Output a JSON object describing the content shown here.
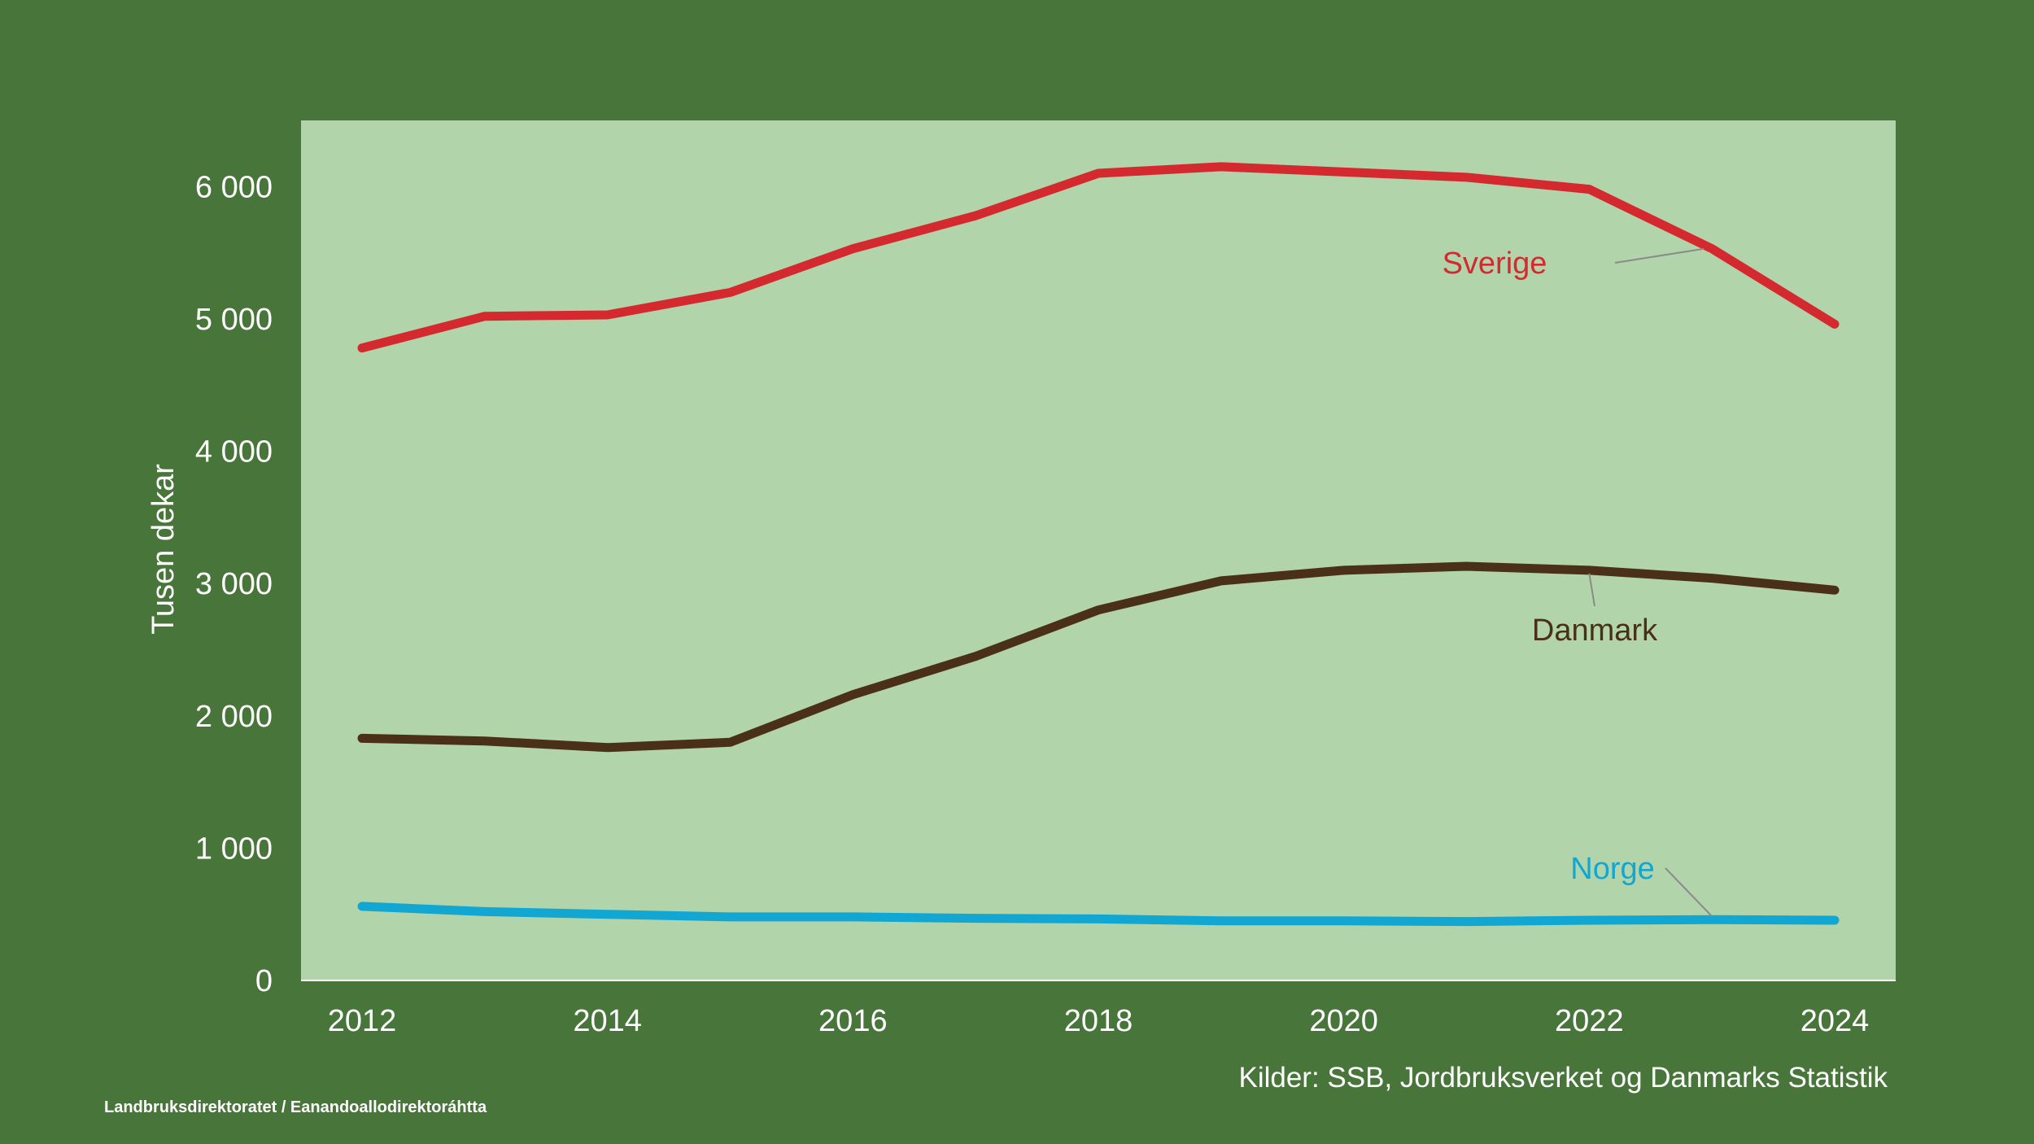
{
  "chart_data": {
    "type": "line",
    "ylabel": "Tusen dekar",
    "xlabel": "",
    "ylim": [
      0,
      6500
    ],
    "xlim": [
      2012,
      2024
    ],
    "x_ticks": [
      "2012",
      "2014",
      "2016",
      "2018",
      "2020",
      "2022",
      "2024"
    ],
    "y_ticks": [
      {
        "value": 0,
        "label": "0"
      },
      {
        "value": 1000,
        "label": "1 000"
      },
      {
        "value": 2000,
        "label": "2 000"
      },
      {
        "value": 3000,
        "label": "3 000"
      },
      {
        "value": 4000,
        "label": "4 000"
      },
      {
        "value": 5000,
        "label": "5 000"
      },
      {
        "value": 6000,
        "label": "6 000"
      }
    ],
    "x": [
      2012,
      2013,
      2014,
      2015,
      2016,
      2017,
      2018,
      2019,
      2020,
      2021,
      2022,
      2023,
      2024
    ],
    "series": [
      {
        "name": "Sverige",
        "color": "#d42a2f",
        "values": [
          4780,
          5020,
          5030,
          5200,
          5530,
          5780,
          6100,
          6150,
          6110,
          6070,
          5980,
          5530,
          4960
        ]
      },
      {
        "name": "Danmark",
        "color": "#4a3018",
        "values": [
          1830,
          1810,
          1760,
          1800,
          2160,
          2450,
          2800,
          3020,
          3100,
          3130,
          3100,
          3040,
          2950
        ]
      },
      {
        "name": "Norge",
        "color": "#11a7d2",
        "values": [
          560,
          520,
          500,
          480,
          480,
          470,
          465,
          450,
          450,
          445,
          455,
          460,
          455
        ]
      }
    ],
    "annotations": [
      {
        "series": "Sverige",
        "text": "Sverige",
        "at_x": 2023
      },
      {
        "series": "Danmark",
        "text": "Danmark",
        "at_x": 2022
      },
      {
        "series": "Norge",
        "text": "Norge",
        "at_x": 2023
      }
    ]
  },
  "colors": {
    "background": "#48763a",
    "plot_area": "#b2d4ab",
    "axis_line": "#ffffff",
    "leader_line": "#8a8a8a"
  },
  "source": "Kilder: SSB, Jordbruksverket og Danmarks Statistik",
  "footer": "Landbruksdirektoratet / Eanandoallodirektoráhtta"
}
